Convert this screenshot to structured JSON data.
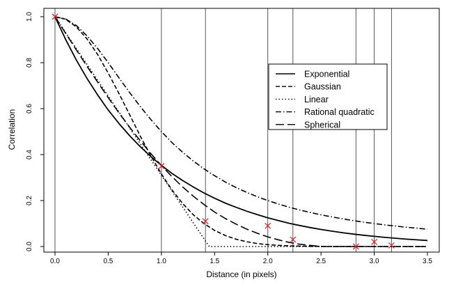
{
  "chart_data": {
    "type": "line",
    "title": "",
    "xlabel": "Distance (in pixels)",
    "ylabel": "Correlation",
    "xlim": [
      0.0,
      3.5
    ],
    "ylim": [
      0.0,
      1.0
    ],
    "x_ticks": [
      "0.0",
      "0.5",
      "1.0",
      "1.5",
      "2.0",
      "2.5",
      "3.0",
      "3.5"
    ],
    "y_ticks": [
      "0.0",
      "0.2",
      "0.4",
      "0.6",
      "0.8",
      "1.0"
    ],
    "grid": false,
    "vertical_reference_lines": [
      0.0,
      1.0,
      1.4142,
      2.0,
      2.2361,
      2.8284,
      3.0,
      3.1623
    ],
    "legend": {
      "placement": "upper-right",
      "entries": [
        {
          "label": "Exponential",
          "line_style": "solid"
        },
        {
          "label": "Gaussian",
          "line_style": "dashed"
        },
        {
          "label": "Linear",
          "line_style": "dotted"
        },
        {
          "label": "Rational quadratic",
          "line_style": "dash-dot"
        },
        {
          "label": "Spherical",
          "line_style": "long-dash"
        }
      ]
    },
    "series": [
      {
        "name": "Exponential",
        "line_style": "solid",
        "x": [
          0.0,
          0.1,
          0.2,
          0.3,
          0.4,
          0.5,
          0.6,
          0.7,
          0.8,
          0.9,
          1.0,
          1.1,
          1.2,
          1.3,
          1.4,
          1.5,
          1.6,
          1.7,
          1.8,
          1.9,
          2.0,
          2.1,
          2.2,
          2.3,
          2.4,
          2.5,
          2.6,
          2.7,
          2.8,
          2.9,
          3.0,
          3.1,
          3.2,
          3.3,
          3.4,
          3.5
        ],
        "values": [
          1.0,
          0.901,
          0.812,
          0.732,
          0.66,
          0.594,
          0.536,
          0.483,
          0.435,
          0.392,
          0.353,
          0.318,
          0.287,
          0.259,
          0.233,
          0.21,
          0.189,
          0.171,
          0.154,
          0.139,
          0.125,
          0.113,
          0.101,
          0.0915,
          0.0824,
          0.0743,
          0.0669,
          0.0603,
          0.0544,
          0.049,
          0.0442,
          0.0398,
          0.0359,
          0.0323,
          0.0291,
          0.0263
        ]
      },
      {
        "name": "Gaussian",
        "line_style": "dashed",
        "x": [
          0.0,
          0.1,
          0.2,
          0.3,
          0.4,
          0.5,
          0.6,
          0.7,
          0.8,
          0.9,
          1.0,
          1.1,
          1.2,
          1.3,
          1.4,
          1.5,
          1.6,
          1.7,
          1.8,
          1.9,
          2.0,
          2.1,
          2.2,
          2.3,
          2.4,
          2.5,
          2.6,
          2.7,
          2.8,
          2.9,
          3.0,
          3.1,
          3.2,
          3.3,
          3.4,
          3.5
        ],
        "values": [
          1.0,
          0.989,
          0.956,
          0.904,
          0.836,
          0.755,
          0.667,
          0.575,
          0.482,
          0.395,
          0.316,
          0.246,
          0.187,
          0.138,
          0.1,
          0.07,
          0.048,
          0.032,
          0.021,
          0.013,
          0.008,
          0.005,
          0.003,
          0.002,
          0.001,
          0.0006,
          0.0003,
          0.0002,
          0.0001,
          0.0,
          0.0,
          0.0,
          0.0,
          0.0,
          0.0,
          0.0
        ]
      },
      {
        "name": "Linear",
        "line_style": "dotted",
        "x": [
          0.0,
          0.1,
          0.2,
          0.3,
          0.4,
          0.5,
          0.6,
          0.7,
          0.8,
          0.9,
          1.0,
          1.1,
          1.2,
          1.3,
          1.4,
          1.45,
          1.5,
          2.0,
          2.5,
          3.0,
          3.5
        ],
        "values": [
          1.0,
          0.931,
          0.862,
          0.793,
          0.724,
          0.655,
          0.586,
          0.517,
          0.448,
          0.379,
          0.31,
          0.241,
          0.172,
          0.103,
          0.034,
          0.0,
          0.0,
          0.0,
          0.0,
          0.0,
          0.0
        ]
      },
      {
        "name": "Rational quadratic",
        "line_style": "dash-dot",
        "x": [
          0.0,
          0.1,
          0.2,
          0.3,
          0.4,
          0.5,
          0.6,
          0.7,
          0.8,
          0.9,
          1.0,
          1.1,
          1.2,
          1.3,
          1.4,
          1.5,
          1.6,
          1.7,
          1.8,
          1.9,
          2.0,
          2.1,
          2.2,
          2.3,
          2.4,
          2.5,
          2.6,
          2.7,
          2.8,
          2.9,
          3.0,
          3.1,
          3.2,
          3.3,
          3.4,
          3.5
        ],
        "values": [
          1.0,
          0.99,
          0.962,
          0.917,
          0.862,
          0.8,
          0.735,
          0.671,
          0.61,
          0.553,
          0.5,
          0.452,
          0.41,
          0.372,
          0.338,
          0.308,
          0.281,
          0.257,
          0.236,
          0.217,
          0.2,
          0.185,
          0.171,
          0.159,
          0.148,
          0.138,
          0.129,
          0.121,
          0.113,
          0.106,
          0.1,
          0.094,
          0.089,
          0.084,
          0.08,
          0.075
        ]
      },
      {
        "name": "Spherical",
        "line_style": "long-dash",
        "x": [
          0.0,
          0.1,
          0.2,
          0.3,
          0.4,
          0.5,
          0.6,
          0.7,
          0.8,
          0.9,
          1.0,
          1.1,
          1.2,
          1.3,
          1.4,
          1.5,
          1.6,
          1.7,
          1.8,
          1.9,
          2.0,
          2.1,
          2.2,
          2.3,
          2.5,
          3.0,
          3.5
        ],
        "values": [
          1.0,
          0.928,
          0.856,
          0.785,
          0.716,
          0.648,
          0.582,
          0.52,
          0.461,
          0.405,
          0.352,
          0.304,
          0.259,
          0.219,
          0.183,
          0.15,
          0.122,
          0.098,
          0.076,
          0.058,
          0.042,
          0.029,
          0.018,
          0.01,
          0.0,
          0.0,
          0.0
        ]
      }
    ],
    "empirical_points": {
      "marker": "x",
      "color": "#e0262b",
      "x": [
        0.0,
        1.0,
        1.414,
        2.0,
        2.236,
        2.828,
        3.0,
        3.162
      ],
      "values": [
        1.0,
        0.35,
        0.11,
        0.09,
        0.03,
        0.0,
        0.02,
        0.005
      ]
    },
    "colors": {
      "line": "#000000",
      "reference_line": "#444444",
      "marker": "#e0262b",
      "background": "#ffffff"
    }
  }
}
